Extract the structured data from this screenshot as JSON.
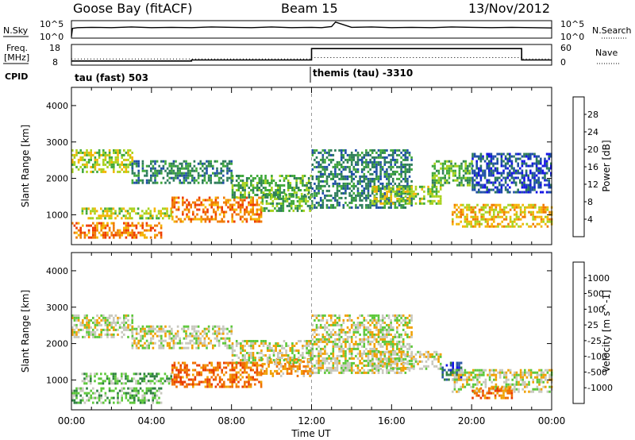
{
  "header": {
    "station": "Goose Bay (fitACF)",
    "beam": "Beam 15",
    "date": "13/Nov/2012"
  },
  "top_panels": {
    "nsky_label": "N.Sky",
    "nsky_ticks": [
      "10^5",
      "10^0"
    ],
    "nsearch_label": "N.Search",
    "freq_label_line1": "Freq.",
    "freq_label_line2": "[MHz]",
    "freq_ticks": [
      "18",
      "8"
    ],
    "nave_label": "Nave",
    "nave_ticks": [
      "60",
      "0"
    ],
    "cpid_label": "CPID",
    "cpid_modes": [
      {
        "label": "tau (fast) 503",
        "start_h": 0,
        "end_h": 12
      },
      {
        "label": "themis (tau) -3310",
        "start_h": 12,
        "end_h": 24
      }
    ]
  },
  "colors": {
    "power": [
      "#1414e6",
      "#1f4ea8",
      "#2e7d5a",
      "#3fa83a",
      "#a8d21e",
      "#f4b400",
      "#f07a00",
      "#ee3a00",
      "#e00000"
    ],
    "velocity": [
      "#1414e6",
      "#2a55a8",
      "#2e8040",
      "#5cc83a",
      "#c8c8be",
      "#f0a000",
      "#f07000",
      "#e83c00",
      "#e00000"
    ]
  },
  "chart_data": [
    {
      "type": "line",
      "panel": "nsky",
      "ylabel": "N.Sky",
      "x_hours": [
        0,
        0.05,
        0.3,
        1,
        2,
        3,
        4,
        5,
        6,
        7,
        8,
        9,
        10,
        11,
        12,
        12.5,
        13,
        13.2,
        14,
        15,
        16,
        17,
        18,
        19,
        20,
        21,
        22,
        23,
        24
      ],
      "values_log": [
        0.4,
        2.8,
        3.0,
        3.1,
        3.0,
        3.2,
        3.0,
        3.1,
        3.0,
        3.2,
        3.1,
        3.0,
        3.2,
        3.0,
        3.1,
        3.0,
        3.3,
        4.6,
        3.1,
        3.2,
        3.0,
        3.1,
        3.0,
        3.2,
        3.1,
        3.0,
        3.1,
        3.0,
        2.9
      ],
      "ylim_log": [
        0,
        5
      ]
    },
    {
      "type": "line",
      "panel": "frequency",
      "ylabel": "Freq. [MHz]",
      "x_hours": [
        0,
        6,
        6,
        12,
        12,
        22.5,
        22.5,
        24
      ],
      "values": [
        10,
        10,
        10.5,
        10.5,
        16,
        16,
        10.5,
        10.5
      ],
      "ylim": [
        8,
        18
      ]
    },
    {
      "type": "line",
      "panel": "nave",
      "ylabel": "Nave",
      "x_hours": [
        0,
        12,
        12,
        22.5,
        22.5,
        24
      ],
      "values": [
        18,
        18,
        22,
        22,
        18,
        18
      ],
      "ylim": [
        0,
        60
      ]
    },
    {
      "type": "heatmap",
      "panel": "power",
      "ylabel": "Slant Range [km]",
      "x_label": "Time UT",
      "xlim_hours": [
        0,
        24
      ],
      "x_ticks": [
        "00:00",
        "04:00",
        "08:00",
        "12:00",
        "16:00",
        "20:00",
        "00:00"
      ],
      "ylim_km": [
        180,
        4500
      ],
      "y_ticks": [
        1000,
        2000,
        3000,
        4000
      ],
      "colorbar_label": "Power [dB]",
      "colorbar_ticks": [
        "28",
        "24",
        "20",
        "16",
        "12",
        "8",
        "4"
      ],
      "bands": [
        {
          "t0": 0,
          "t1": 4.5,
          "r0": 400,
          "r1": 800,
          "level": 6
        },
        {
          "t0": 0.5,
          "t1": 5,
          "r0": 900,
          "r1": 1200,
          "level": 4
        },
        {
          "t0": 5,
          "t1": 9.5,
          "r0": 800,
          "r1": 1500,
          "level": 6
        },
        {
          "t0": 9.5,
          "t1": 12,
          "r0": 1100,
          "r1": 1600,
          "level": 3
        },
        {
          "t0": 0,
          "t1": 3,
          "r0": 2200,
          "r1": 2800,
          "level": 4
        },
        {
          "t0": 3,
          "t1": 8,
          "r0": 1900,
          "r1": 2500,
          "level": 2
        },
        {
          "t0": 8,
          "t1": 12,
          "r0": 1500,
          "r1": 2100,
          "level": 3
        },
        {
          "t0": 12,
          "t1": 17,
          "r0": 1200,
          "r1": 2800,
          "level": 2
        },
        {
          "t0": 15,
          "t1": 18.5,
          "r0": 1300,
          "r1": 1800,
          "level": 4
        },
        {
          "t0": 18,
          "t1": 20,
          "r0": 1800,
          "r1": 2500,
          "level": 3
        },
        {
          "t0": 19,
          "t1": 24,
          "r0": 700,
          "r1": 1300,
          "level": 5
        },
        {
          "t0": 20,
          "t1": 24,
          "r0": 1600,
          "r1": 2700,
          "level": 1
        }
      ]
    },
    {
      "type": "heatmap",
      "panel": "velocity",
      "ylabel": "Slant Range [km]",
      "x_label": "Time UT",
      "xlim_hours": [
        0,
        24
      ],
      "x_ticks": [
        "00:00",
        "04:00",
        "08:00",
        "12:00",
        "16:00",
        "20:00",
        "00:00"
      ],
      "ylim_km": [
        180,
        4500
      ],
      "y_ticks": [
        1000,
        2000,
        3000,
        4000
      ],
      "colorbar_label": "Velocity [m s^-1]",
      "colorbar_ticks": [
        "1000",
        "500",
        "100",
        "25",
        "-25",
        "-100",
        "-500",
        "-1000"
      ],
      "bands": [
        {
          "t0": 0,
          "t1": 4.5,
          "r0": 400,
          "r1": 800,
          "level": 3
        },
        {
          "t0": 0.5,
          "t1": 5,
          "r0": 900,
          "r1": 1200,
          "level": 3
        },
        {
          "t0": 5,
          "t1": 9.5,
          "r0": 800,
          "r1": 1500,
          "level": 6
        },
        {
          "t0": 9.5,
          "t1": 12,
          "r0": 1100,
          "r1": 1600,
          "level": 5
        },
        {
          "t0": 0,
          "t1": 3,
          "r0": 2200,
          "r1": 2800,
          "level": 4
        },
        {
          "t0": 3,
          "t1": 8,
          "r0": 1900,
          "r1": 2500,
          "level": 4
        },
        {
          "t0": 8,
          "t1": 12,
          "r0": 1500,
          "r1": 2100,
          "level": 4
        },
        {
          "t0": 12,
          "t1": 17,
          "r0": 1200,
          "r1": 2800,
          "level": 4
        },
        {
          "t0": 15,
          "t1": 18.5,
          "r0": 1300,
          "r1": 1800,
          "level": 4
        },
        {
          "t0": 18.5,
          "t1": 19.5,
          "r0": 1000,
          "r1": 1500,
          "level": 1
        },
        {
          "t0": 19,
          "t1": 24,
          "r0": 700,
          "r1": 1300,
          "level": 4
        },
        {
          "t0": 20,
          "t1": 22,
          "r0": 500,
          "r1": 800,
          "level": 6
        }
      ]
    }
  ]
}
